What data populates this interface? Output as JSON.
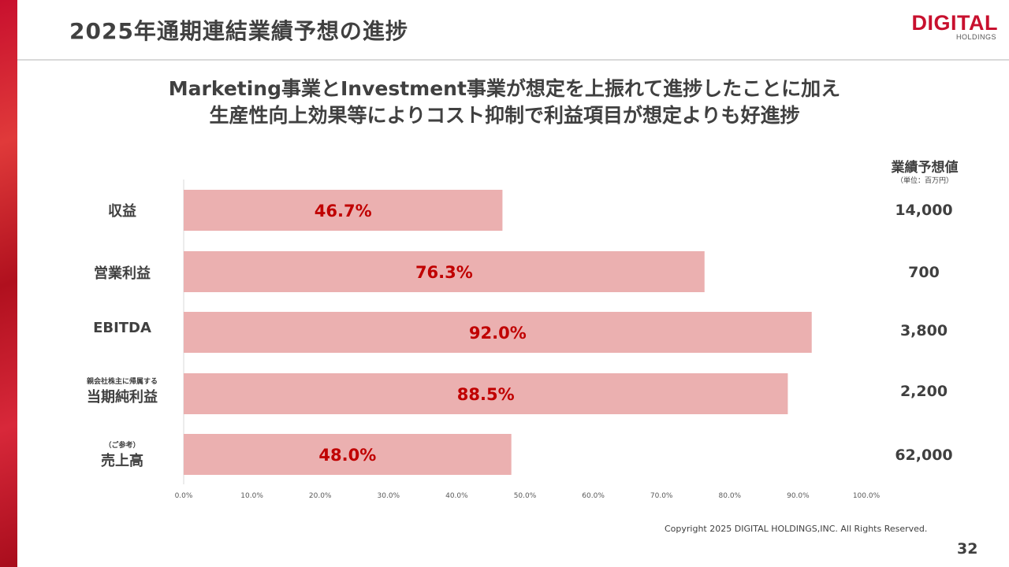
{
  "page": {
    "title": "2025年通期連結業績予想の進捗",
    "headline_line1": "Marketing事業とInvestment事業が想定を上振れて進捗したことに加え",
    "headline_line2": "生産性向上効果等によりコスト抑制で利益項目が想定よりも好進捗",
    "copyright": "Copyright 2025 DIGITAL HOLDINGS,INC. All Rights Reserved.",
    "page_number": "32"
  },
  "logo": {
    "main": "DIGITAL",
    "sub": "HOLDINGS"
  },
  "forecast_column": {
    "header": "業績予想値",
    "unit": "（単位：百万円）"
  },
  "rows": [
    {
      "small": "",
      "label": "収益",
      "forecast": "14,000"
    },
    {
      "small": "",
      "label": "営業利益",
      "forecast": "700"
    },
    {
      "small": "",
      "label": "EBITDA",
      "forecast": "3,800"
    },
    {
      "small": "親会社株主に帰属する",
      "label": "当期純利益",
      "forecast": "2,200"
    },
    {
      "small": "（ご参考）",
      "label": "売上高",
      "forecast": "62,000"
    }
  ],
  "colors": {
    "bar": "#ebb0b0",
    "value_text": "#c00000",
    "accent": "#c8102e"
  },
  "chart_data": {
    "type": "bar",
    "orientation": "horizontal",
    "categories": [
      "収益",
      "営業利益",
      "EBITDA",
      "当期純利益",
      "売上高"
    ],
    "values": [
      46.7,
      76.3,
      92.0,
      88.5,
      48.0
    ],
    "data_labels": [
      "46.7%",
      "76.3%",
      "92.0%",
      "88.5%",
      "48.0%"
    ],
    "xlim": [
      0,
      100
    ],
    "xticks": [
      0,
      10,
      20,
      30,
      40,
      50,
      60,
      70,
      80,
      90,
      100
    ],
    "xtick_labels": [
      "0.0%",
      "10.0%",
      "20.0%",
      "30.0%",
      "40.0%",
      "50.0%",
      "60.0%",
      "70.0%",
      "80.0%",
      "90.0%",
      "100.0%"
    ],
    "grid": false
  }
}
